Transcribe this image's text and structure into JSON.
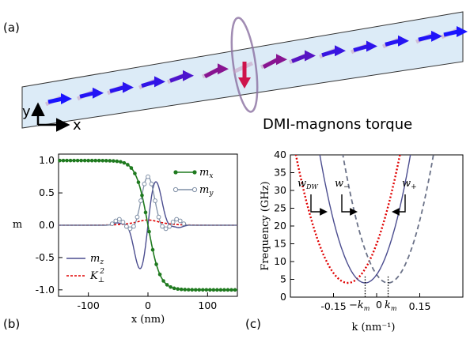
{
  "panel_a": {
    "label": "(a)",
    "caption": "DMI-magnons torque",
    "axis_y": "y",
    "axis_x": "x"
  },
  "panel_b": {
    "label": "(b)"
  },
  "panel_c": {
    "label": "(c)"
  },
  "colors": {
    "mx": "#1f7a1f",
    "my": "#7f8fa6",
    "mz": "#4b4d8f",
    "k2": "#e00000",
    "branch_solid": "#4b4d8f",
    "branch_dashed": "#6b7288",
    "arrow_blue": "#1a1aff",
    "arrow_red": "#cc0000",
    "strip": "#dcebf7"
  },
  "chart_data": [
    {
      "type": "line",
      "panel": "b",
      "xlabel": "x (nm)",
      "ylabel": "m",
      "xlim": [
        -150,
        150
      ],
      "ylim": [
        -1.1,
        1.1
      ],
      "xticks": [
        "-100",
        "0",
        "100"
      ],
      "yticks": [
        "1.0",
        "0.5",
        "0.0",
        "-0.5",
        "-1.0"
      ],
      "legend_placement": "top-right / bottom-left",
      "series": [
        {
          "name": "m_x",
          "label": "m",
          "sub": "x",
          "style": "solid-dots",
          "description": "mx = -tanh(x/20)"
        },
        {
          "name": "m_y",
          "label": "m",
          "sub": "y",
          "style": "solid-open-circles",
          "x": [
            -60,
            -45,
            -30,
            -15,
            0,
            15,
            30,
            45,
            60
          ],
          "values": [
            0,
            0.05,
            -0.2,
            0.3,
            0.7,
            0.3,
            -0.2,
            0.05,
            0
          ]
        },
        {
          "name": "m_z",
          "label": "m",
          "sub": "z",
          "style": "solid",
          "x": [
            -60,
            -45,
            -30,
            -15,
            0,
            15,
            30,
            45,
            60
          ],
          "values": [
            0,
            0.1,
            0.2,
            -0.6,
            0,
            0.7,
            -0.2,
            -0.1,
            0
          ]
        },
        {
          "name": "K_perp^2",
          "label": "K",
          "sub": "⊥",
          "sup": "2",
          "style": "dashed",
          "x": [
            -150,
            -40,
            0,
            40,
            150
          ],
          "values": [
            0,
            0,
            0.08,
            0,
            0
          ]
        }
      ]
    },
    {
      "type": "line",
      "panel": "c",
      "xlabel": "k (nm⁻¹)",
      "ylabel": "Frequency (GHz)",
      "xlim": [
        -0.3,
        0.3
      ],
      "ylim": [
        0,
        40
      ],
      "xticks": [
        "-0.15",
        "0",
        "0.15"
      ],
      "yticks": [
        "0",
        "5",
        "10",
        "15",
        "20",
        "25",
        "30",
        "35",
        "40"
      ],
      "km_label": "k",
      "km_sub": "m",
      "km_neg_label": "−k",
      "km_neg_sub": "m",
      "km_value": 0.04,
      "series": [
        {
          "name": "w_DW",
          "label": "w",
          "sub": "DW",
          "style": "dotted",
          "description": "parabola, minimum 4 GHz at k = -0.1"
        },
        {
          "name": "w_-",
          "label": "w",
          "sub": "−",
          "style": "solid",
          "description": "parabola, minimum 4 GHz at k = -0.04"
        },
        {
          "name": "w_+",
          "label": "w",
          "sub": "+",
          "style": "dashed",
          "description": "parabola, minimum 4 GHz at k = 0.04"
        }
      ]
    }
  ]
}
